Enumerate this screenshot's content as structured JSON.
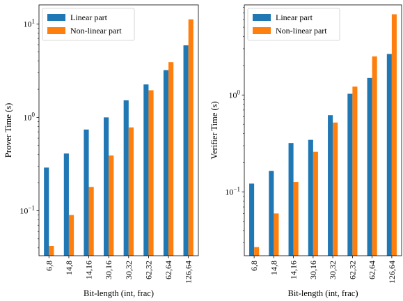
{
  "chart_data": [
    {
      "type": "bar",
      "categories": [
        "6,8",
        "14,8",
        "14,16",
        "30,16",
        "30,32",
        "62,32",
        "62,64",
        "126,64"
      ],
      "series": [
        {
          "name": "Linear part",
          "values": [
            0.29,
            0.41,
            0.74,
            1.0,
            1.52,
            2.25,
            3.2,
            5.9
          ],
          "color": "#1f77b4"
        },
        {
          "name": "Non-linear part",
          "values": [
            0.042,
            0.09,
            0.18,
            0.39,
            0.78,
            1.95,
            3.9,
            11.2
          ],
          "color": "#ff7f0e"
        }
      ],
      "xlabel": "Bit-length (int, frac)",
      "ylabel": "Prover Time (s)",
      "yscale": "log",
      "ylim": [
        0.033,
        16
      ],
      "yticks": [
        {
          "value": 0.1,
          "label": "10−1"
        },
        {
          "value": 1,
          "label": "10 0"
        },
        {
          "value": 10,
          "label": "10 1"
        }
      ],
      "legend": "top-left",
      "grid": false
    },
    {
      "type": "bar",
      "categories": [
        "6,8",
        "14,8",
        "14,16",
        "30,16",
        "30,32",
        "62,32",
        "62,64",
        "126,64"
      ],
      "series": [
        {
          "name": "Linear part",
          "values": [
            0.122,
            0.165,
            0.32,
            0.345,
            0.62,
            1.03,
            1.5,
            2.65
          ],
          "color": "#1f77b4"
        },
        {
          "name": "Non-linear part",
          "values": [
            0.027,
            0.06,
            0.127,
            0.26,
            0.52,
            1.22,
            2.5,
            6.8
          ],
          "color": "#ff7f0e"
        }
      ],
      "xlabel": "Bit-length (int, frac)",
      "ylabel": "Verifier Time (s)",
      "yscale": "log",
      "ylim": [
        0.022,
        8.5
      ],
      "yticks": [
        {
          "value": 0.1,
          "label": "10−1"
        },
        {
          "value": 1,
          "label": "10 0"
        }
      ],
      "legend": "top-left",
      "grid": false
    }
  ]
}
